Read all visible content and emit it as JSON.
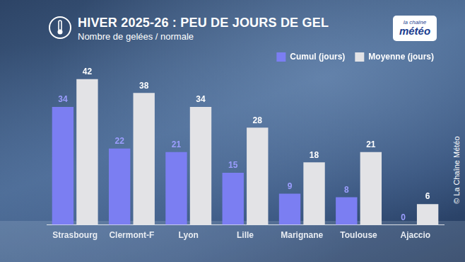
{
  "chart_data": {
    "type": "bar",
    "title": "HIVER 2025-26 : PEU DE JOURS DE GEL",
    "subtitle": "Nombre de gelées / normale",
    "logo": [
      "la chaîne",
      "météo"
    ],
    "source": "© La Chaîne Météo",
    "categories": [
      "Strasbourg",
      "Clermont-F",
      "Lyon",
      "Lille",
      "Marignane",
      "Toulouse",
      "Ajaccio"
    ],
    "series": [
      {
        "name": "Cumul (jours)",
        "color": "#7b7ef2",
        "values": [
          34,
          22,
          21,
          15,
          9,
          8,
          0
        ]
      },
      {
        "name": "Moyenne (jours)",
        "color": "#e3e3e6",
        "values": [
          42,
          38,
          34,
          28,
          18,
          21,
          6
        ]
      }
    ],
    "ylim": [
      0,
      45
    ],
    "grid": false,
    "legend": "top-right",
    "data_labels": true,
    "tick_labels": "x"
  }
}
